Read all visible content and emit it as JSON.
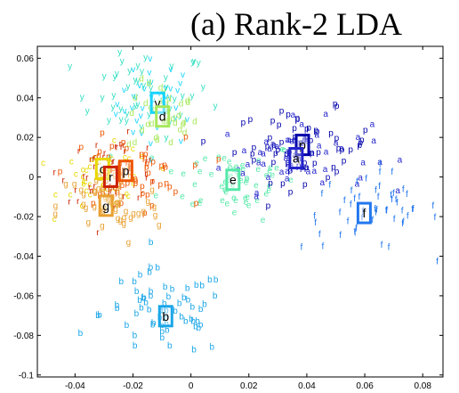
{
  "chart_data": {
    "type": "scatter",
    "title": "(a) Rank-2 LDA",
    "xlabel": "",
    "ylabel": "",
    "xlim": [
      -0.053,
      0.087
    ],
    "ylim": [
      -0.101,
      0.066
    ],
    "xticks": [
      -0.04,
      -0.02,
      0,
      0.02,
      0.04,
      0.06,
      0.08
    ],
    "yticks": [
      0.06,
      0.04,
      0.02,
      0,
      -0.02,
      -0.04,
      -0.06,
      -0.08,
      -0.1
    ],
    "xtick_labels": [
      "-0.04",
      "-0.02",
      "0",
      "0.02",
      "0.04",
      "0.06",
      "0.08"
    ],
    "ytick_labels": [
      "0.06",
      "0.04",
      "0.02",
      "0",
      "-0.02",
      "-0.04",
      "-0.06",
      "-0.08",
      "-0.1"
    ],
    "grid": false,
    "legend": "none",
    "series": [
      {
        "label": "v",
        "color": "#17d4ff",
        "center": [
          -0.0115,
          0.0375
        ],
        "spread": [
          0.007,
          0.011
        ],
        "count": 40
      },
      {
        "label": "y",
        "color": "#2fdfc0",
        "center": [
          -0.017,
          0.042
        ],
        "spread": [
          0.012,
          0.011
        ],
        "count": 45
      },
      {
        "label": "d",
        "color": "#a8e85c",
        "center": [
          -0.01,
          0.03
        ],
        "spread": [
          0.006,
          0.009
        ],
        "count": 35
      },
      {
        "label": "e",
        "color": "#55e8a8",
        "center": [
          0.014,
          -0.001
        ],
        "spread": [
          0.012,
          0.01
        ],
        "count": 60
      },
      {
        "label": "a",
        "color": "#2222cc",
        "center": [
          0.036,
          0.011
        ],
        "spread": [
          0.013,
          0.009
        ],
        "count": 60
      },
      {
        "label": "p",
        "color": "#0000aa",
        "center": [
          0.039,
          0.016
        ],
        "spread": [
          0.012,
          0.009
        ],
        "count": 60
      },
      {
        "label": "f",
        "color": "#2277ee",
        "center": [
          0.062,
          -0.017
        ],
        "spread": [
          0.012,
          0.01
        ],
        "count": 55
      },
      {
        "label": "b",
        "color": "#1aa6e8",
        "center": [
          -0.009,
          -0.069
        ],
        "spread": [
          0.011,
          0.011
        ],
        "count": 65
      },
      {
        "label": "c",
        "color": "#e8d800",
        "center": [
          -0.029,
          -0.001
        ],
        "spread": [
          0.008,
          0.008
        ],
        "count": 50
      },
      {
        "label": "r",
        "color": "#cc2200",
        "center": [
          -0.027,
          0.004
        ],
        "spread": [
          0.009,
          0.008
        ],
        "count": 55
      },
      {
        "label": "p",
        "color": "#ee5500",
        "center": [
          -0.022,
          0.002
        ],
        "spread": [
          0.01,
          0.009
        ],
        "count": 55
      },
      {
        "label": "g",
        "color": "#e8a030",
        "center": [
          -0.028,
          -0.015
        ],
        "spread": [
          0.009,
          0.01
        ],
        "count": 55
      }
    ],
    "centers": [
      {
        "label": "v",
        "x": -0.0115,
        "y": 0.0375,
        "color": "#17d4ff"
      },
      {
        "label": "d",
        "x": -0.0098,
        "y": 0.0306,
        "color": "#a8e85c"
      },
      {
        "label": "e",
        "x": 0.0145,
        "y": -0.0014,
        "color": "#55e8a8"
      },
      {
        "label": "p",
        "x": 0.0385,
        "y": 0.0162,
        "color": "#0000aa"
      },
      {
        "label": "a",
        "x": 0.0363,
        "y": 0.0095,
        "color": "#2222cc"
      },
      {
        "label": "f",
        "x": 0.0598,
        "y": -0.0182,
        "color": "#2277ee"
      },
      {
        "label": "b",
        "x": -0.0087,
        "y": -0.0703,
        "color": "#1aa6e8"
      },
      {
        "label": "c",
        "x": -0.0305,
        "y": 0.0041,
        "color": "#e8d800"
      },
      {
        "label": "r",
        "x": -0.0277,
        "y": 0.0001,
        "color": "#cc2200"
      },
      {
        "label": "p",
        "x": -0.0225,
        "y": 0.0031,
        "color": "#ee5500"
      },
      {
        "label": "g",
        "x": -0.0293,
        "y": -0.0145,
        "color": "#e8a030"
      }
    ]
  }
}
